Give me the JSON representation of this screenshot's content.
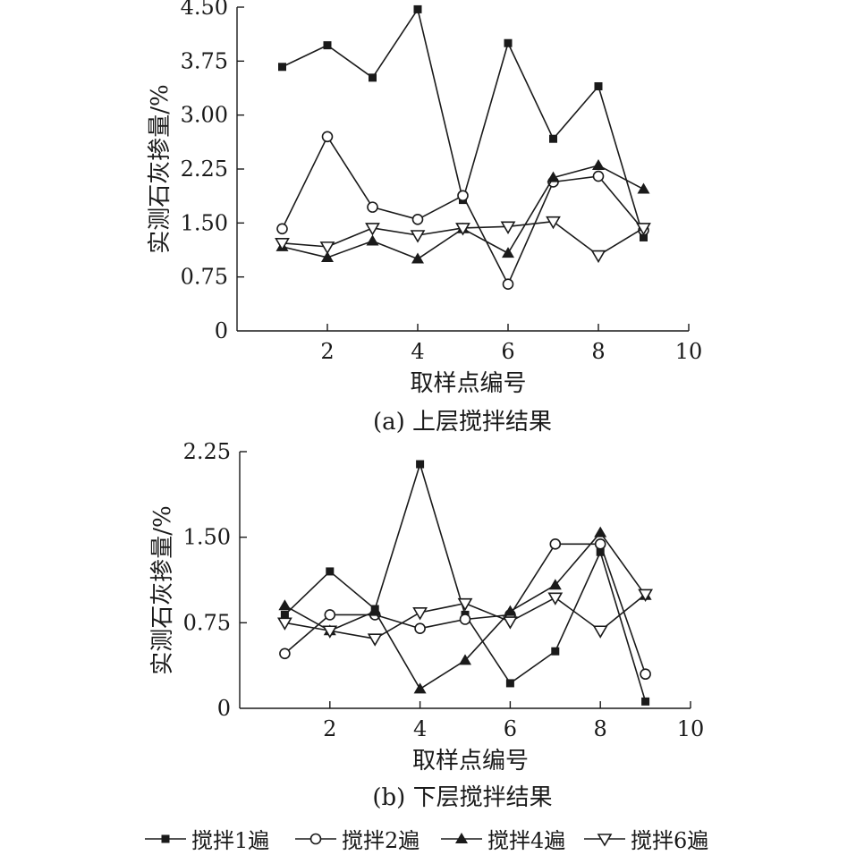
{
  "colors": {
    "ink": "#1a1a1a",
    "background": "#ffffff"
  },
  "chart_data": [
    {
      "type": "line",
      "caption": "(a) 上层搅拌结果",
      "xlabel": "取样点编号",
      "ylabel": "实测石灰掺量/%",
      "xlim": [
        0,
        10
      ],
      "ylim": [
        0,
        4.5
      ],
      "xticks": [
        2,
        4,
        6,
        8,
        10
      ],
      "yticks": [
        0,
        0.75,
        1.5,
        2.25,
        3.0,
        3.75,
        4.5
      ],
      "ytick_labels": [
        "0",
        "0.75",
        "1.50",
        "2.25",
        "3.00",
        "3.75",
        "4.50"
      ],
      "grid": false,
      "x": [
        1,
        2,
        3,
        4,
        5,
        6,
        7,
        8,
        9
      ],
      "series": [
        {
          "name": "搅拌1遍",
          "marker": "square-filled",
          "values": [
            3.67,
            3.97,
            3.52,
            4.47,
            1.82,
            4.0,
            2.67,
            3.4,
            1.3
          ]
        },
        {
          "name": "搅拌2遍",
          "marker": "circle-open",
          "values": [
            1.42,
            2.7,
            1.72,
            1.55,
            1.88,
            0.65,
            2.07,
            2.15,
            1.4
          ]
        },
        {
          "name": "搅拌4遍",
          "marker": "triangle-up-filled",
          "values": [
            1.17,
            1.02,
            1.25,
            1.0,
            1.42,
            1.08,
            2.13,
            2.3,
            1.97
          ]
        },
        {
          "name": "搅拌6遍",
          "marker": "triangle-down-open",
          "values": [
            1.22,
            1.17,
            1.43,
            1.33,
            1.43,
            1.45,
            1.52,
            1.05,
            1.43
          ]
        }
      ]
    },
    {
      "type": "line",
      "caption": "(b) 下层搅拌结果",
      "xlabel": "取样点编号",
      "ylabel": "实测石灰掺量/%",
      "xlim": [
        0,
        10
      ],
      "ylim": [
        0,
        2.25
      ],
      "xticks": [
        2,
        4,
        6,
        8,
        10
      ],
      "yticks": [
        0,
        0.75,
        1.5,
        2.25
      ],
      "ytick_labels": [
        "0",
        "0.75",
        "1.50",
        "2.25"
      ],
      "grid": false,
      "x": [
        1,
        2,
        3,
        4,
        5,
        6,
        7,
        8,
        9
      ],
      "series": [
        {
          "name": "搅拌1遍",
          "marker": "square-filled",
          "values": [
            0.82,
            1.2,
            0.87,
            2.14,
            0.82,
            0.22,
            0.5,
            1.37,
            0.06
          ]
        },
        {
          "name": "搅拌2遍",
          "marker": "circle-open",
          "values": [
            0.48,
            0.82,
            0.82,
            0.7,
            0.78,
            0.82,
            1.44,
            1.44,
            0.3
          ]
        },
        {
          "name": "搅拌4遍",
          "marker": "triangle-up-filled",
          "values": [
            0.9,
            0.68,
            0.85,
            0.17,
            0.42,
            0.85,
            1.08,
            1.54,
            0.99
          ]
        },
        {
          "name": "搅拌6遍",
          "marker": "triangle-down-open",
          "values": [
            0.75,
            0.68,
            0.61,
            0.84,
            0.92,
            0.76,
            0.97,
            0.68,
            1.0
          ]
        }
      ]
    }
  ],
  "legend": {
    "placement": "bottom",
    "items": [
      {
        "label": "搅拌1遍",
        "marker": "square-filled"
      },
      {
        "label": "搅拌2遍",
        "marker": "circle-open"
      },
      {
        "label": "搅拌4遍",
        "marker": "triangle-up-filled"
      },
      {
        "label": "搅拌6遍",
        "marker": "triangle-down-open"
      }
    ]
  }
}
